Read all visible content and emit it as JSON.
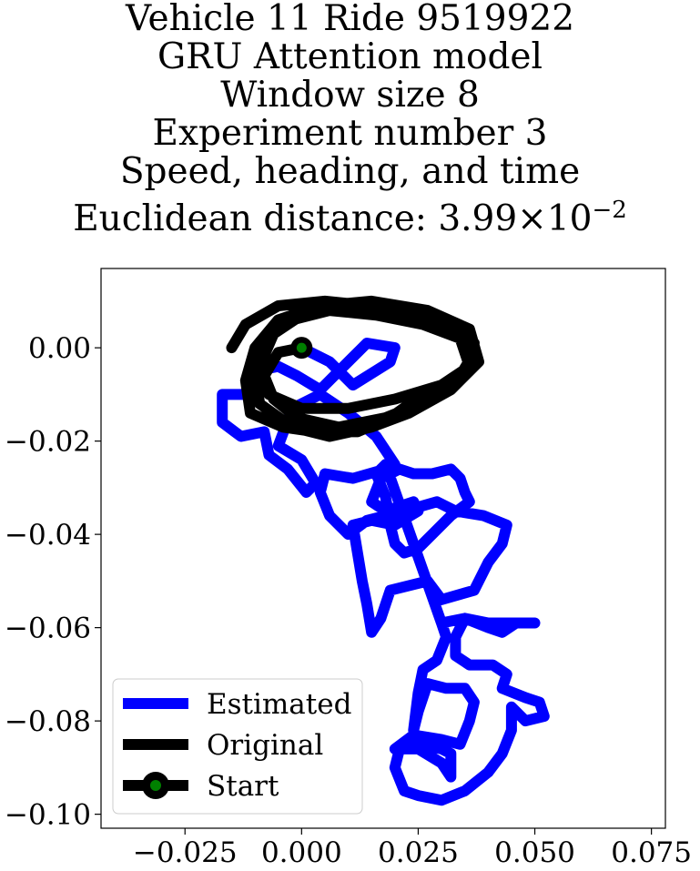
{
  "title": {
    "line1": "Vehicle 11 Ride 9519922",
    "line2": "GRU Attention model",
    "line3": "Window size 8",
    "line4": "Experiment number 3",
    "line5": "Speed, heading, and time",
    "line6_prefix": "Euclidean distance: 3.99×10",
    "line6_exp": "−2"
  },
  "chart_data": {
    "type": "line",
    "xlim": [
      -0.043,
      0.078
    ],
    "ylim": [
      -0.103,
      0.017
    ],
    "x_ticks": [
      -0.025,
      0.0,
      0.025,
      0.05,
      0.075
    ],
    "x_tick_labels": [
      "−0.025",
      "0.000",
      "0.025",
      "0.050",
      "0.075"
    ],
    "y_ticks": [
      0.0,
      -0.02,
      -0.04,
      -0.06,
      -0.08,
      -0.1
    ],
    "y_tick_labels": [
      "0.00",
      "−0.02",
      "−0.04",
      "−0.06",
      "−0.08",
      "−0.10"
    ],
    "grid": false,
    "legend_position": "lower-left",
    "series": [
      {
        "name": "Estimated",
        "color": "#0000ff",
        "points": [
          [
            0.0,
            0.0
          ],
          [
            0.006,
            -0.003
          ],
          [
            0.011,
            -0.008
          ],
          [
            0.019,
            -0.003
          ],
          [
            0.02,
            0.0
          ],
          [
            0.014,
            0.001
          ],
          [
            0.009,
            -0.004
          ],
          [
            0.004,
            -0.009
          ],
          [
            -0.001,
            -0.006
          ],
          [
            -0.005,
            -0.004
          ],
          [
            -0.01,
            -0.005
          ],
          [
            -0.012,
            -0.01
          ],
          [
            -0.017,
            -0.01
          ],
          [
            -0.017,
            -0.016
          ],
          [
            -0.013,
            -0.019
          ],
          [
            -0.008,
            -0.018
          ],
          [
            -0.007,
            -0.023
          ],
          [
            -0.003,
            -0.026
          ],
          [
            0.001,
            -0.031
          ],
          [
            0.003,
            -0.029
          ],
          [
            0.0,
            -0.024
          ],
          [
            -0.005,
            -0.021
          ],
          [
            -0.002,
            -0.013
          ],
          [
            0.004,
            -0.01
          ],
          [
            0.01,
            -0.014
          ],
          [
            0.016,
            -0.019
          ],
          [
            0.02,
            -0.025
          ],
          [
            0.018,
            -0.026
          ],
          [
            0.011,
            -0.028
          ],
          [
            0.005,
            -0.027
          ],
          [
            0.004,
            -0.031
          ],
          [
            0.006,
            -0.036
          ],
          [
            0.01,
            -0.04
          ],
          [
            0.014,
            -0.037
          ],
          [
            0.022,
            -0.035
          ],
          [
            0.029,
            -0.033
          ],
          [
            0.033,
            -0.035
          ],
          [
            0.039,
            -0.036
          ],
          [
            0.044,
            -0.038
          ],
          [
            0.043,
            -0.042
          ],
          [
            0.04,
            -0.046
          ],
          [
            0.037,
            -0.052
          ],
          [
            0.03,
            -0.054
          ],
          [
            0.027,
            -0.05
          ],
          [
            0.019,
            -0.052
          ],
          [
            0.017,
            -0.058
          ],
          [
            0.015,
            -0.061
          ],
          [
            0.014,
            -0.055
          ],
          [
            0.013,
            -0.05
          ],
          [
            0.012,
            -0.044
          ],
          [
            0.011,
            -0.038
          ],
          [
            0.015,
            -0.037
          ],
          [
            0.02,
            -0.038
          ],
          [
            0.025,
            -0.035
          ],
          [
            0.024,
            -0.033
          ],
          [
            0.018,
            -0.035
          ],
          [
            0.015,
            -0.033
          ],
          [
            0.017,
            -0.028
          ],
          [
            0.021,
            -0.026
          ],
          [
            0.024,
            -0.027
          ],
          [
            0.028,
            -0.027
          ],
          [
            0.032,
            -0.026
          ],
          [
            0.034,
            -0.028
          ],
          [
            0.035,
            -0.031
          ],
          [
            0.036,
            -0.033
          ],
          [
            0.032,
            -0.036
          ],
          [
            0.028,
            -0.04
          ],
          [
            0.025,
            -0.043
          ],
          [
            0.022,
            -0.044
          ],
          [
            0.02,
            -0.042
          ],
          [
            0.019,
            -0.038
          ],
          [
            0.018,
            -0.032
          ],
          [
            0.016,
            -0.027
          ],
          [
            0.018,
            -0.025
          ],
          [
            0.03,
            -0.059
          ],
          [
            0.035,
            -0.058
          ],
          [
            0.04,
            -0.059
          ],
          [
            0.045,
            -0.059
          ],
          [
            0.05,
            -0.059
          ],
          [
            0.046,
            -0.059
          ],
          [
            0.043,
            -0.061
          ],
          [
            0.04,
            -0.06
          ],
          [
            0.035,
            -0.058
          ],
          [
            0.033,
            -0.062
          ],
          [
            0.033,
            -0.066
          ],
          [
            0.036,
            -0.068
          ],
          [
            0.041,
            -0.068
          ],
          [
            0.044,
            -0.07
          ],
          [
            0.043,
            -0.073
          ],
          [
            0.048,
            -0.075
          ],
          [
            0.051,
            -0.076
          ],
          [
            0.052,
            -0.079
          ],
          [
            0.048,
            -0.08
          ],
          [
            0.045,
            -0.077
          ],
          [
            0.045,
            -0.082
          ],
          [
            0.043,
            -0.087
          ],
          [
            0.04,
            -0.091
          ],
          [
            0.035,
            -0.095
          ],
          [
            0.03,
            -0.097
          ],
          [
            0.025,
            -0.096
          ],
          [
            0.022,
            -0.095
          ],
          [
            0.02,
            -0.09
          ],
          [
            0.021,
            -0.086
          ],
          [
            0.025,
            -0.085
          ],
          [
            0.03,
            -0.086
          ],
          [
            0.032,
            -0.087
          ],
          [
            0.032,
            -0.092
          ],
          [
            0.03,
            -0.089
          ],
          [
            0.025,
            -0.086
          ],
          [
            0.02,
            -0.086
          ],
          [
            0.024,
            -0.083
          ],
          [
            0.03,
            -0.084
          ],
          [
            0.034,
            -0.085
          ],
          [
            0.036,
            -0.08
          ],
          [
            0.037,
            -0.076
          ],
          [
            0.035,
            -0.073
          ],
          [
            0.031,
            -0.073
          ],
          [
            0.027,
            -0.072
          ],
          [
            0.025,
            -0.078
          ],
          [
            0.024,
            -0.082
          ],
          [
            0.025,
            -0.074
          ],
          [
            0.026,
            -0.069
          ],
          [
            0.029,
            -0.067
          ],
          [
            0.031,
            -0.062
          ],
          [
            0.03,
            -0.059
          ]
        ]
      },
      {
        "name": "Original",
        "color": "#000000",
        "points": [
          [
            -0.015,
            0.0
          ],
          [
            -0.012,
            0.005
          ],
          [
            -0.005,
            0.009
          ],
          [
            0.005,
            0.01
          ],
          [
            0.015,
            0.009
          ],
          [
            0.026,
            0.007
          ],
          [
            0.034,
            0.004
          ],
          [
            0.037,
            -0.001
          ],
          [
            0.034,
            -0.006
          ],
          [
            0.026,
            -0.01
          ],
          [
            0.019,
            -0.015
          ],
          [
            0.012,
            -0.018
          ],
          [
            0.003,
            -0.018
          ],
          [
            -0.004,
            -0.017
          ],
          [
            -0.011,
            -0.014
          ],
          [
            -0.012,
            -0.007
          ],
          [
            -0.01,
            0.0
          ],
          [
            -0.005,
            0.006
          ],
          [
            0.004,
            0.009
          ],
          [
            0.015,
            0.01
          ],
          [
            0.027,
            0.008
          ],
          [
            0.036,
            0.004
          ],
          [
            0.038,
            -0.003
          ],
          [
            0.032,
            -0.009
          ],
          [
            0.023,
            -0.014
          ],
          [
            0.015,
            -0.017
          ],
          [
            0.006,
            -0.019
          ],
          [
            -0.002,
            -0.017
          ],
          [
            -0.009,
            -0.012
          ],
          [
            -0.01,
            -0.005
          ],
          [
            -0.008,
            0.002
          ],
          [
            -0.002,
            0.006
          ],
          [
            0.006,
            0.008
          ],
          [
            0.016,
            0.007
          ],
          [
            0.026,
            0.005
          ],
          [
            0.034,
            0.002
          ],
          [
            0.036,
            -0.004
          ],
          [
            0.03,
            -0.008
          ],
          [
            0.02,
            -0.011
          ],
          [
            0.01,
            -0.013
          ],
          [
            0.0,
            -0.013
          ],
          [
            -0.007,
            -0.01
          ],
          [
            -0.009,
            -0.004
          ],
          [
            -0.006,
            0.003
          ],
          [
            0.0,
            0.007
          ],
          [
            0.01,
            0.009
          ],
          [
            0.021,
            0.008
          ],
          [
            0.031,
            0.005
          ],
          [
            0.037,
            0.001
          ],
          [
            0.036,
            -0.005
          ],
          [
            0.028,
            -0.011
          ],
          [
            0.018,
            -0.015
          ],
          [
            0.008,
            -0.017
          ],
          [
            -0.001,
            -0.015
          ],
          [
            -0.006,
            -0.011
          ],
          [
            -0.008,
            -0.006
          ],
          [
            -0.005,
            -0.001
          ],
          [
            0.0,
            0.0
          ]
        ]
      },
      {
        "name": "Start",
        "color": "#000000",
        "marker_color": "#008000",
        "points": [
          [
            0.0,
            0.0
          ]
        ]
      }
    ],
    "legend": [
      {
        "label": "Estimated",
        "color": "#0000ff"
      },
      {
        "label": "Original",
        "color": "#000000"
      },
      {
        "label": "Start",
        "color": "#000000",
        "marker_color": "#008000"
      }
    ]
  }
}
